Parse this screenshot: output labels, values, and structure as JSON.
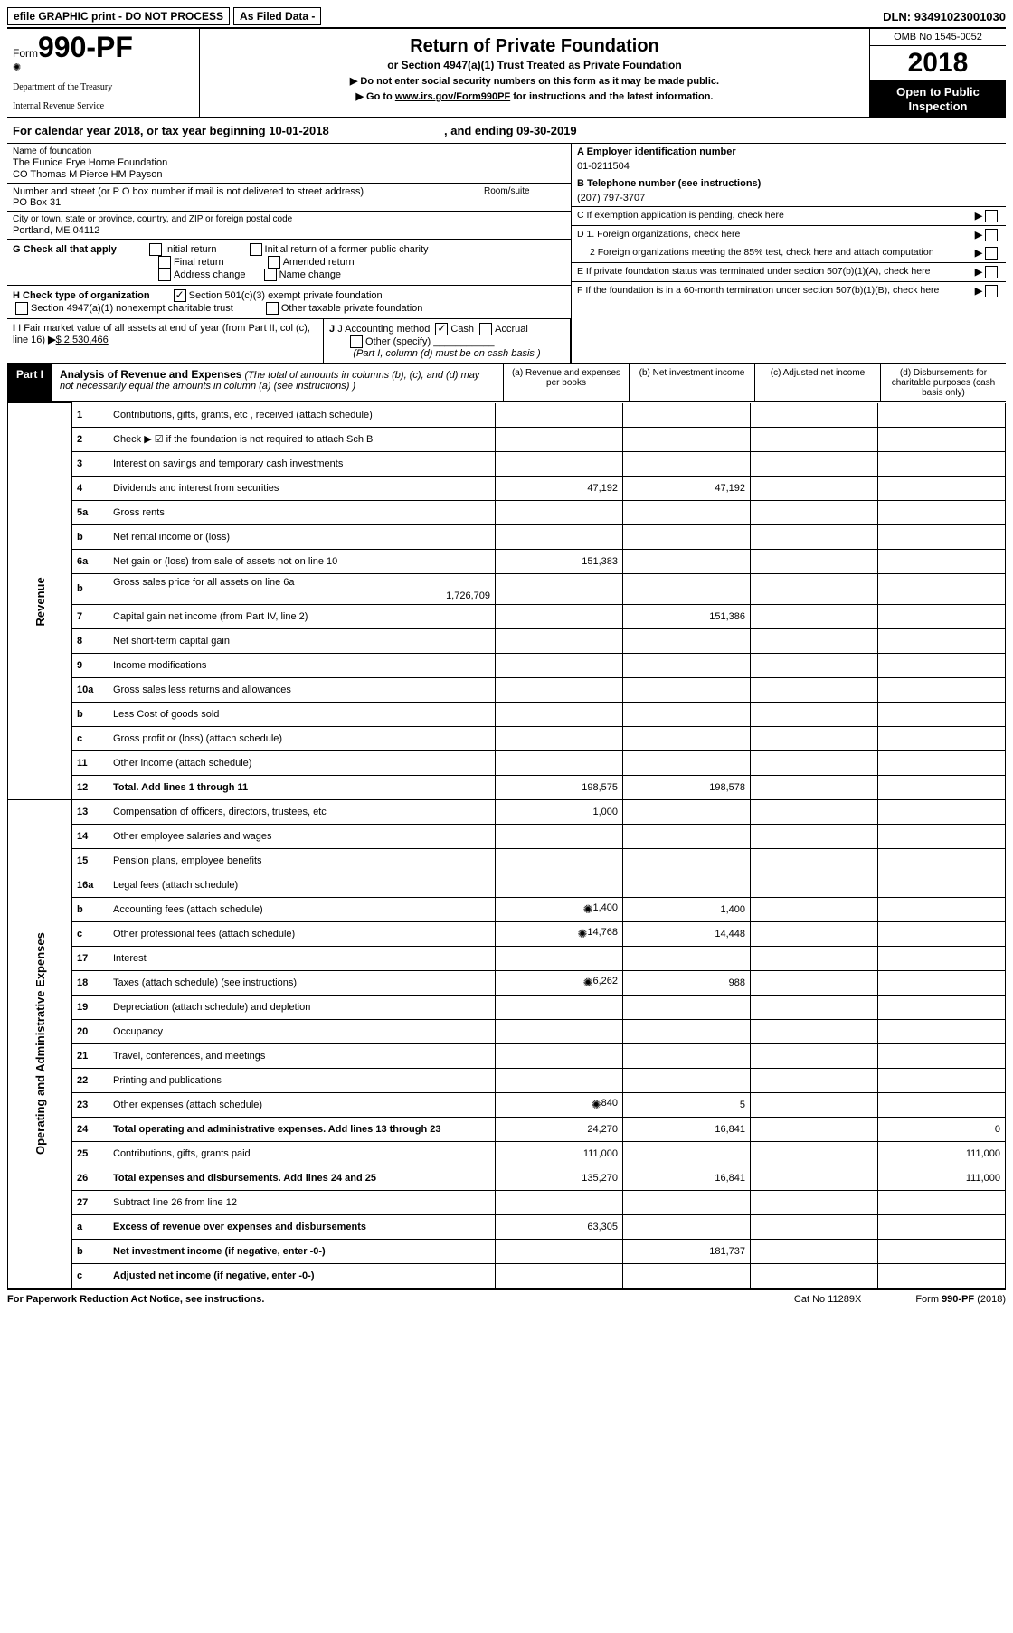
{
  "topbar": {
    "efile": "efile GRAPHIC print - DO NOT PROCESS",
    "asfiled": "As Filed Data -",
    "dln_label": "DLN:",
    "dln": "93491023001030"
  },
  "header": {
    "form_prefix": "Form",
    "form_no": "990-PF",
    "dept1": "Department of the Treasury",
    "dept2": "Internal Revenue Service",
    "title": "Return of Private Foundation",
    "sub1": "or Section 4947(a)(1) Trust Treated as Private Foundation",
    "sub2a": "▶ Do not enter social security numbers on this form as it may be made public.",
    "sub2b": "▶ Go to ",
    "link": "www.irs.gov/Form990PF",
    "sub2c": " for instructions and the latest information.",
    "omb": "OMB No 1545-0052",
    "year": "2018",
    "open": "Open to Public Inspection"
  },
  "calyear": {
    "a": "For calendar year 2018, or tax year beginning 10-01-2018",
    "b": ", and ending 09-30-2019"
  },
  "foundation": {
    "name_label": "Name of foundation",
    "name1": "The Eunice Frye Home Foundation",
    "name2": "CO Thomas M Pierce HM Payson",
    "addr_label": "Number and street (or P O  box number if mail is not delivered to street address)",
    "addr": "PO Box 31",
    "room_label": "Room/suite",
    "city_label": "City or town, state or province, country, and ZIP or foreign postal code",
    "city": "Portland, ME  04112"
  },
  "right": {
    "A_label": "A Employer identification number",
    "A": "01-0211504",
    "B_label": "B Telephone number (see instructions)",
    "B": "(207) 797-3707",
    "C": "C If exemption application is pending, check here",
    "D1": "D 1. Foreign organizations, check here",
    "D2": "2  Foreign organizations meeting the 85% test, check here and attach computation",
    "E": "E  If private foundation status was terminated under section 507(b)(1)(A), check here",
    "F": "F  If the foundation is in a 60-month termination under section 507(b)(1)(B), check here"
  },
  "G": {
    "label": "G Check all that apply",
    "opts": [
      "Initial return",
      "Initial return of a former public charity",
      "Final return",
      "Amended return",
      "Address change",
      "Name change"
    ]
  },
  "H": {
    "label": "H Check type of organization",
    "opt1": "Section 501(c)(3) exempt private foundation",
    "opt2": "Section 4947(a)(1) nonexempt charitable trust",
    "opt3": "Other taxable private foundation"
  },
  "I": {
    "label": "I Fair market value of all assets at end of year (from Part II, col  (c), line 16)",
    "value": "$  2,530,466"
  },
  "J": {
    "label": "J Accounting method",
    "cash": "Cash",
    "accrual": "Accrual",
    "other": "Other (specify)",
    "note": "(Part I, column (d) must be on cash basis )"
  },
  "part1": {
    "tag": "Part I",
    "title": "Analysis of Revenue and Expenses",
    "note": " (The total of amounts in columns (b), (c), and (d) may not necessarily equal the amounts in column (a) (see instructions) )",
    "col_a": "(a)   Revenue and expenses per books",
    "col_b": "(b)   Net investment income",
    "col_c": "(c)   Adjusted net income",
    "col_d": "(d)   Disbursements for charitable purposes (cash basis only)"
  },
  "vlabels": {
    "revenue": "Revenue",
    "expenses": "Operating and Administrative Expenses"
  },
  "rows": [
    {
      "n": "1",
      "d": "Contributions, gifts, grants, etc , received (attach schedule)"
    },
    {
      "n": "2",
      "d": "Check ▶ ☑ if the foundation is not required to attach Sch  B"
    },
    {
      "n": "3",
      "d": "Interest on savings and temporary cash investments"
    },
    {
      "n": "4",
      "d": "Dividends and interest from securities",
      "a": "47,192",
      "b": "47,192"
    },
    {
      "n": "5a",
      "d": "Gross rents"
    },
    {
      "n": "b",
      "d": "Net rental income or (loss)"
    },
    {
      "n": "6a",
      "d": "Net gain or (loss) from sale of assets not on line 10",
      "a": "151,383"
    },
    {
      "n": "b",
      "d": "Gross sales price for all assets on line 6a",
      "inline": "1,726,709"
    },
    {
      "n": "7",
      "d": "Capital gain net income (from Part IV, line 2)",
      "b": "151,386"
    },
    {
      "n": "8",
      "d": "Net short-term capital gain"
    },
    {
      "n": "9",
      "d": "Income modifications"
    },
    {
      "n": "10a",
      "d": "Gross sales less returns and allowances"
    },
    {
      "n": "b",
      "d": "Less  Cost of goods sold"
    },
    {
      "n": "c",
      "d": "Gross profit or (loss) (attach schedule)"
    },
    {
      "n": "11",
      "d": "Other income (attach schedule)"
    },
    {
      "n": "12",
      "d": "Total. Add lines 1 through 11",
      "a": "198,575",
      "b": "198,578",
      "bold": true
    },
    {
      "n": "13",
      "d": "Compensation of officers, directors, trustees, etc",
      "a": "1,000"
    },
    {
      "n": "14",
      "d": "Other employee salaries and wages"
    },
    {
      "n": "15",
      "d": "Pension plans, employee benefits"
    },
    {
      "n": "16a",
      "d": "Legal fees (attach schedule)"
    },
    {
      "n": "b",
      "d": "Accounting fees (attach schedule)",
      "icon": true,
      "a": "1,400",
      "b": "1,400"
    },
    {
      "n": "c",
      "d": "Other professional fees (attach schedule)",
      "icon": true,
      "a": "14,768",
      "b": "14,448"
    },
    {
      "n": "17",
      "d": "Interest"
    },
    {
      "n": "18",
      "d": "Taxes (attach schedule) (see instructions)",
      "icon": true,
      "a": "6,262",
      "b": "988"
    },
    {
      "n": "19",
      "d": "Depreciation (attach schedule) and depletion"
    },
    {
      "n": "20",
      "d": "Occupancy"
    },
    {
      "n": "21",
      "d": "Travel, conferences, and meetings"
    },
    {
      "n": "22",
      "d": "Printing and publications"
    },
    {
      "n": "23",
      "d": "Other expenses (attach schedule)",
      "icon": true,
      "a": "840",
      "b": "5"
    },
    {
      "n": "24",
      "d": "Total operating and administrative expenses. Add lines 13 through 23",
      "a": "24,270",
      "b": "16,841",
      "dd": "0",
      "bold": true
    },
    {
      "n": "25",
      "d": "Contributions, gifts, grants paid",
      "a": "111,000",
      "dd": "111,000"
    },
    {
      "n": "26",
      "d": "Total expenses and disbursements. Add lines 24 and 25",
      "a": "135,270",
      "b": "16,841",
      "dd": "111,000",
      "bold": true
    },
    {
      "n": "27",
      "d": "Subtract line 26 from line 12"
    },
    {
      "n": "a",
      "d": "Excess of revenue over expenses and disbursements",
      "a": "63,305",
      "bold": true
    },
    {
      "n": "b",
      "d": "Net investment income (if negative, enter -0-)",
      "b": "181,737",
      "bold": true
    },
    {
      "n": "c",
      "d": "Adjusted net income (if negative, enter -0-)",
      "bold": true
    }
  ],
  "footer": {
    "l": "For Paperwork Reduction Act Notice, see instructions.",
    "m": "Cat  No  11289X",
    "r": "Form 990-PF (2018)"
  }
}
